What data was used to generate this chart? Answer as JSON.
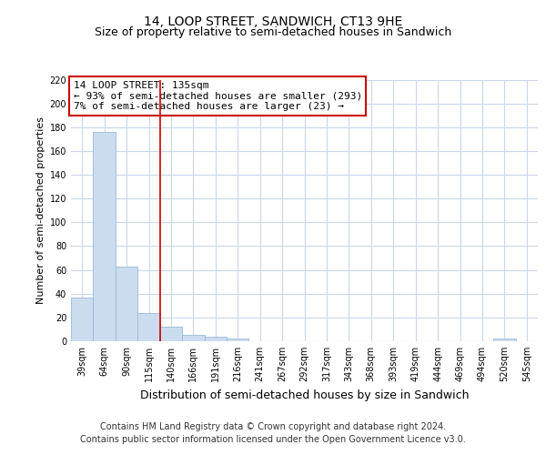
{
  "title": "14, LOOP STREET, SANDWICH, CT13 9HE",
  "subtitle": "Size of property relative to semi-detached houses in Sandwich",
  "xlabel": "Distribution of semi-detached houses by size in Sandwich",
  "ylabel": "Number of semi-detached properties",
  "categories": [
    "39sqm",
    "64sqm",
    "90sqm",
    "115sqm",
    "140sqm",
    "166sqm",
    "191sqm",
    "216sqm",
    "241sqm",
    "267sqm",
    "292sqm",
    "317sqm",
    "343sqm",
    "368sqm",
    "393sqm",
    "419sqm",
    "444sqm",
    "469sqm",
    "494sqm",
    "520sqm",
    "545sqm"
  ],
  "values": [
    37,
    176,
    63,
    24,
    12,
    5,
    4,
    2,
    0,
    0,
    0,
    0,
    0,
    0,
    0,
    0,
    0,
    0,
    0,
    2,
    0
  ],
  "bar_color": "#ccdcef",
  "bar_edge_color": "#9ab8d8",
  "highlight_line_color": "#cc0000",
  "highlight_line_xindex": 3.5,
  "annotation_text": "14 LOOP STREET: 135sqm\n← 93% of semi-detached houses are smaller (293)\n7% of semi-detached houses are larger (23) →",
  "annotation_box_color": "#ffffff",
  "annotation_box_edge_color": "#cc0000",
  "ylim": [
    0,
    220
  ],
  "yticks": [
    0,
    20,
    40,
    60,
    80,
    100,
    120,
    140,
    160,
    180,
    200,
    220
  ],
  "footer": "Contains HM Land Registry data © Crown copyright and database right 2024.\nContains public sector information licensed under the Open Government Licence v3.0.",
  "bg_color": "#ffffff",
  "grid_color": "#c8d8ec",
  "title_fontsize": 10,
  "subtitle_fontsize": 9,
  "xlabel_fontsize": 9,
  "ylabel_fontsize": 8,
  "tick_fontsize": 7,
  "annotation_fontsize": 8,
  "footer_fontsize": 7
}
